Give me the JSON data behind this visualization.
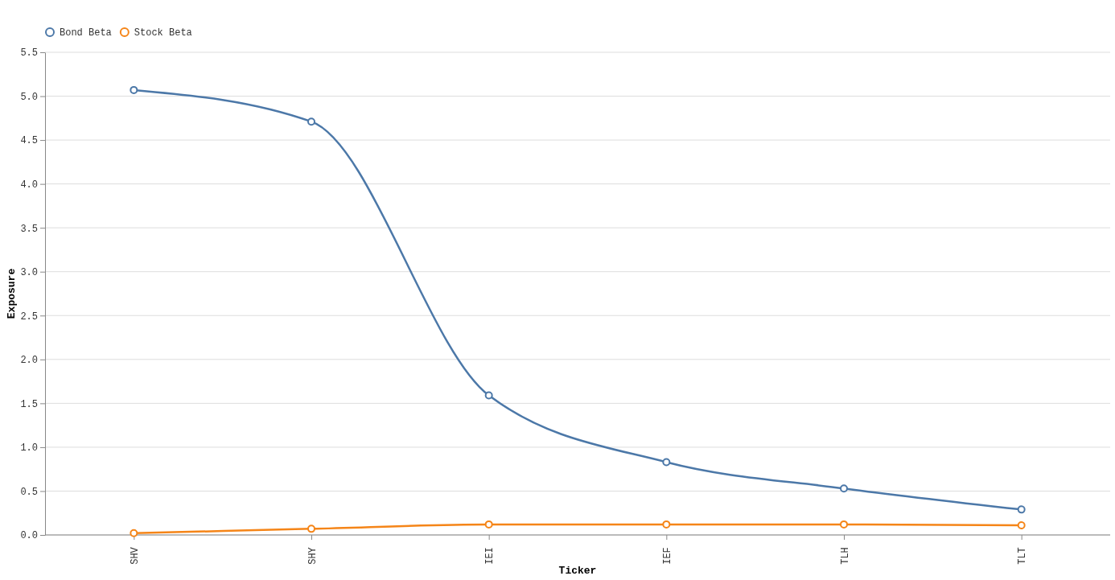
{
  "chart_data": {
    "type": "line",
    "xlabel": "Ticker",
    "ylabel": "Exposure",
    "categories": [
      "SHV",
      "SHY",
      "IEI",
      "IEF",
      "TLH",
      "TLT"
    ],
    "series": [
      {
        "name": "Bond Beta",
        "color": "#4c78a8",
        "values": [
          5.07,
          4.71,
          1.59,
          0.83,
          0.53,
          0.29
        ]
      },
      {
        "name": "Stock Beta",
        "color": "#f58518",
        "values": [
          0.02,
          0.07,
          0.12,
          0.12,
          0.12,
          0.11
        ]
      }
    ],
    "ylim": [
      0,
      5.5
    ],
    "yticks": [
      {
        "value": 0,
        "label": "0.0"
      },
      {
        "value": 0.5,
        "label": "0.5"
      },
      {
        "value": 1,
        "label": "1.0"
      },
      {
        "value": 1.5,
        "label": "1.5"
      },
      {
        "value": 2,
        "label": "2.0"
      },
      {
        "value": 2.5,
        "label": "2.5"
      },
      {
        "value": 3,
        "label": "3.0"
      },
      {
        "value": 3.5,
        "label": "3.5"
      },
      {
        "value": 4,
        "label": "4.0"
      },
      {
        "value": 4.5,
        "label": "4.5"
      },
      {
        "value": 5,
        "label": "5.0"
      },
      {
        "value": 5.5,
        "label": "5.5"
      }
    ],
    "grid": "y",
    "legend": "top left",
    "marker": "circle",
    "line_style": "solid"
  }
}
